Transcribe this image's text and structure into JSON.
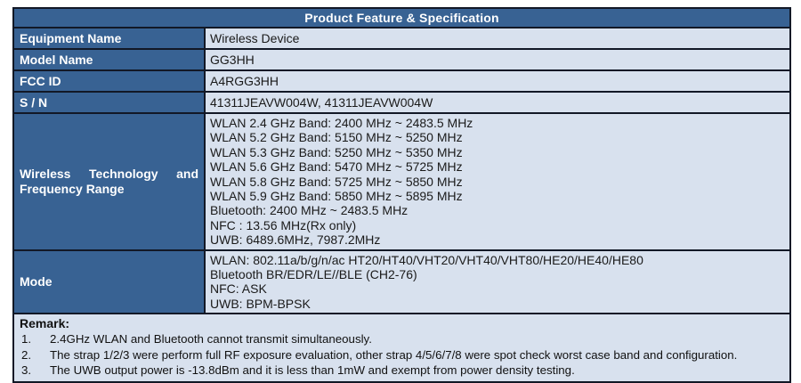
{
  "table": {
    "title": "Product Feature & Specification",
    "rows": [
      {
        "label": "Equipment Name",
        "value": "Wireless Device"
      },
      {
        "label": "Model Name",
        "value": "GG3HH"
      },
      {
        "label": "FCC ID",
        "value": "A4RGG3HH"
      },
      {
        "label": "S / N",
        "value": "41311JEAVW004W, 41311JEAVW004W"
      }
    ],
    "wireless": {
      "label": "Wireless Technology and Frequency Range",
      "lines": [
        "WLAN 2.4 GHz Band: 2400 MHz ~ 2483.5 MHz",
        "WLAN 5.2 GHz Band: 5150 MHz ~ 5250 MHz",
        "WLAN 5.3 GHz Band: 5250 MHz ~ 5350 MHz",
        "WLAN 5.6 GHz Band: 5470 MHz ~ 5725 MHz",
        "WLAN 5.8 GHz Band: 5725 MHz ~ 5850 MHz",
        "WLAN 5.9 GHz Band: 5850 MHz ~ 5895 MHz",
        "Bluetooth: 2400 MHz ~ 2483.5 MHz",
        "NFC : 13.56 MHz(Rx only)",
        "UWB: 6489.6MHz, 7987.2MHz"
      ]
    },
    "mode": {
      "label": "Mode",
      "lines": [
        "WLAN: 802.11a/b/g/n/ac HT20/HT40/VHT20/VHT40/VHT80/HE20/HE40/HE80",
        "Bluetooth BR/EDR/LE//BLE (CH2-76)",
        "NFC: ASK",
        "UWB: BPM-BPSK"
      ]
    },
    "remark": {
      "heading": "Remark:",
      "items": [
        {
          "num": "1.",
          "text": "2.4GHz WLAN and Bluetooth cannot transmit simultaneously."
        },
        {
          "num": "2.",
          "text": "The strap 1/2/3 were perform full RF exposure evaluation, other strap 4/5/6/7/8 were spot check worst case band and configuration."
        },
        {
          "num": "3.",
          "text": "The UWB output power is -13.8dBm and it is less than 1mW and exempt from power density testing."
        }
      ]
    },
    "colors": {
      "header_bg": "#386293",
      "label_bg": "#386293",
      "value_bg": "#D8E1EE",
      "border": "#121826",
      "label_text": "#FFFFFF",
      "value_text": "#1A1A1A"
    }
  }
}
